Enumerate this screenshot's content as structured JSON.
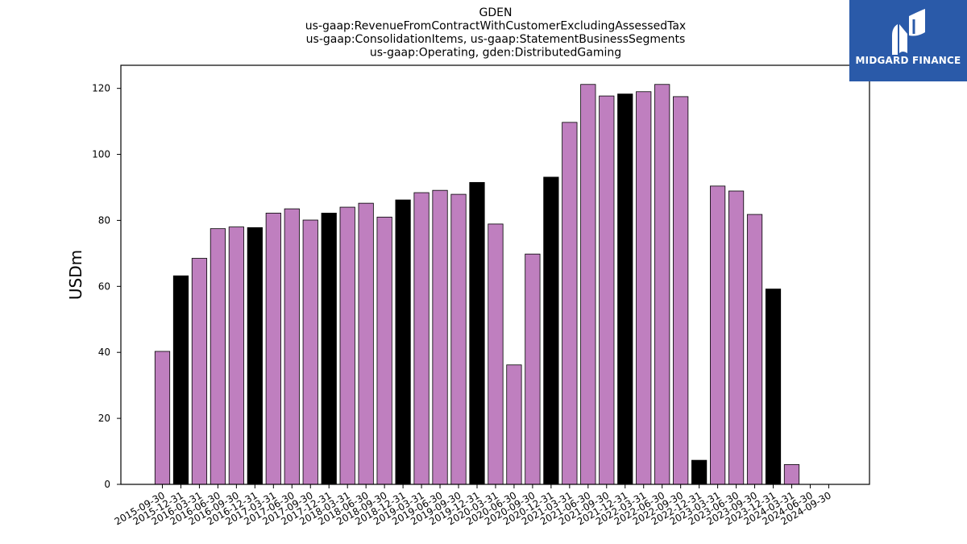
{
  "brand": {
    "name": "MIDGARD FINANCE",
    "color": "#2a5aa9"
  },
  "colors": {
    "purple": "#bf7fbf",
    "black": "#000000"
  },
  "chart_data": {
    "type": "bar",
    "title": [
      "GDEN",
      "us-gaap:RevenueFromContractWithCustomerExcludingAssessedTax",
      "us-gaap:ConsolidationItems, us-gaap:StatementBusinessSegments",
      "us-gaap:Operating, gden:DistributedGaming"
    ],
    "ylabel": "USDm",
    "ylim": [
      0,
      127
    ],
    "yticks": [
      0,
      20,
      40,
      60,
      80,
      100,
      120
    ],
    "categories": [
      "2015-09-30",
      "2015-12-31",
      "2016-03-31",
      "2016-06-30",
      "2016-09-30",
      "2016-12-31",
      "2017-03-31",
      "2017-06-30",
      "2017-09-30",
      "2017-12-31",
      "2018-03-31",
      "2018-06-30",
      "2018-09-30",
      "2018-12-31",
      "2019-03-31",
      "2019-06-30",
      "2019-09-30",
      "2019-12-31",
      "2020-03-31",
      "2020-06-30",
      "2020-09-30",
      "2020-12-31",
      "2021-03-31",
      "2021-06-30",
      "2021-09-30",
      "2021-12-31",
      "2022-03-31",
      "2022-06-30",
      "2022-09-30",
      "2022-12-31",
      "2023-03-31",
      "2023-06-30",
      "2023-09-30",
      "2023-12-31",
      "2024-03-31",
      "2024-06-30",
      "2024-09-30"
    ],
    "values": [
      40.3,
      63.2,
      68.5,
      77.5,
      78.0,
      77.8,
      82.2,
      83.5,
      80.1,
      82.2,
      84.0,
      85.2,
      81.0,
      86.2,
      88.4,
      89.1,
      87.9,
      91.5,
      78.9,
      36.2,
      69.8,
      93.1,
      109.7,
      121.2,
      117.7,
      118.3,
      119.0,
      121.2,
      117.5,
      7.3,
      90.4,
      88.9,
      81.8,
      59.2,
      6.0,
      0,
      0
    ],
    "highlight": [
      false,
      true,
      false,
      false,
      false,
      true,
      false,
      false,
      false,
      true,
      false,
      false,
      false,
      true,
      false,
      false,
      false,
      true,
      false,
      false,
      false,
      true,
      false,
      false,
      false,
      true,
      false,
      false,
      false,
      true,
      false,
      false,
      false,
      true,
      false,
      false,
      false
    ],
    "grid": false,
    "legend": "none"
  }
}
